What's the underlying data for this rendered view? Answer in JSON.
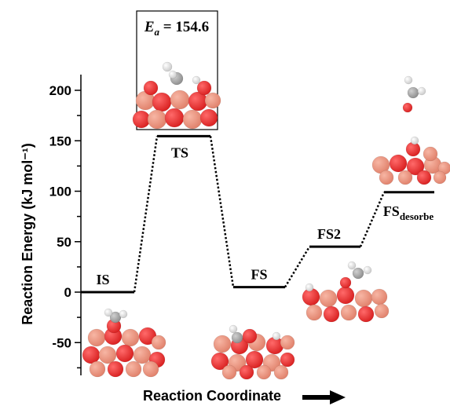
{
  "chart_data": {
    "type": "line",
    "ylabel": "Reaction Energy (kJ mol⁻¹)",
    "xlabel": "Reaction Coordinate",
    "ylim": [
      -80,
      220
    ],
    "yticks": [
      -50,
      0,
      50,
      100,
      150,
      200
    ],
    "yticklabels": [
      "-50",
      "0",
      "50",
      "100",
      "150",
      "200"
    ],
    "levels": [
      {
        "label": "IS",
        "subscript": "",
        "energy": 0
      },
      {
        "label": "TS",
        "subscript": "",
        "energy": 154.6
      },
      {
        "label": "FS",
        "subscript": "",
        "energy": 5
      },
      {
        "label": "FS2",
        "subscript": "",
        "energy": 45
      },
      {
        "label": "FS",
        "subscript": "desorbe",
        "energy": 99
      }
    ],
    "activation_energy": {
      "symbol": "E",
      "subscript": "a",
      "text": " = 154.6",
      "value": 154.6
    }
  },
  "colors": {
    "axis": "#000000",
    "oxygen": "#d81f1f",
    "copper": "#e0806a",
    "carbon": "#8c8c8c",
    "hydrogen": "#ffffff"
  }
}
